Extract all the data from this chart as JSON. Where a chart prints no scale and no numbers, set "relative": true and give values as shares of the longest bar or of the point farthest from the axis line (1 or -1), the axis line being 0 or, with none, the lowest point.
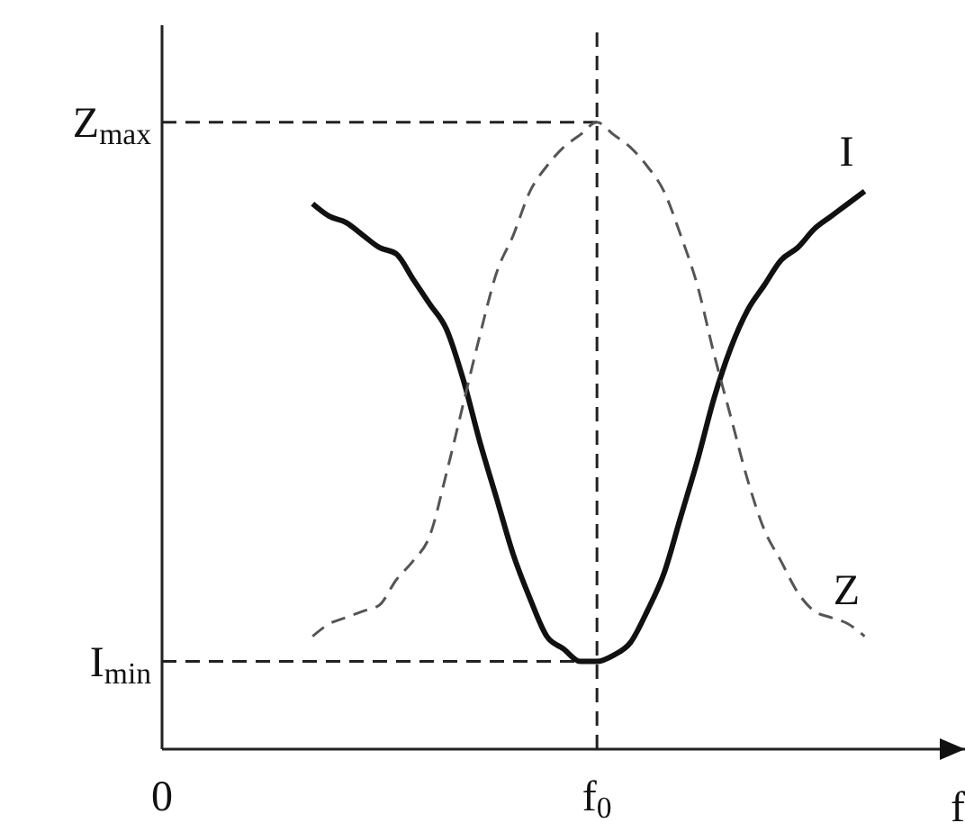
{
  "chart_data": {
    "type": "line",
    "relative": true,
    "xlabel": "f",
    "marker": "none",
    "categories": [
      "0",
      null,
      null,
      null,
      null,
      null,
      null,
      null,
      null,
      null,
      null,
      null,
      null,
      null,
      null,
      null,
      null,
      null,
      null,
      null,
      null,
      null,
      null,
      null,
      null,
      null,
      "f$_{0}$",
      null,
      null,
      null,
      null,
      null,
      null,
      null,
      null,
      null,
      null,
      null,
      null,
      null,
      null,
      null,
      null,
      null,
      null,
      null,
      null,
      null,
      null
    ],
    "series": [
      {
        "name": "I",
        "color": "#111111",
        "line_style": "solid",
        "values": [
          null,
          null,
          null,
          null,
          null,
          null,
          null,
          null,
          null,
          0.87,
          0.85,
          0.84,
          0.82,
          0.8,
          0.79,
          0.75,
          0.71,
          0.67,
          0.59,
          0.49,
          0.4,
          0.31,
          0.24,
          0.18,
          0.16,
          0.14,
          0.14,
          0.15,
          0.17,
          0.22,
          0.28,
          0.37,
          0.46,
          0.56,
          0.64,
          0.7,
          0.74,
          0.78,
          0.8,
          0.83,
          0.85,
          0.87,
          0.89,
          null,
          null,
          null,
          null,
          null,
          null
        ]
      },
      {
        "name": "Z",
        "color": "#555555",
        "line_style": "dashed",
        "values": [
          null,
          null,
          null,
          null,
          null,
          null,
          null,
          null,
          null,
          0.18,
          0.2,
          0.21,
          0.22,
          0.23,
          0.27,
          0.3,
          0.34,
          0.44,
          0.55,
          0.66,
          0.76,
          0.82,
          0.89,
          0.93,
          0.96,
          0.98,
          1.0,
          0.98,
          0.96,
          0.93,
          0.89,
          0.82,
          0.74,
          0.63,
          0.53,
          0.43,
          0.35,
          0.3,
          0.25,
          0.22,
          0.21,
          0.2,
          0.18,
          null,
          null,
          null,
          null,
          null,
          null
        ]
      }
    ],
    "ref_lines": [
      {
        "axis": "x",
        "value": "f$_{0}$",
        "line_style": "dashed",
        "color": "#222222"
      },
      {
        "axis": "y",
        "value": 1,
        "label": "Z$_{max}$",
        "line_style": "dashed",
        "color": "#222222"
      },
      {
        "axis": "y",
        "value": 0.14,
        "label": "I$_{min}$",
        "line_style": "dashed",
        "color": "#222222"
      }
    ]
  }
}
